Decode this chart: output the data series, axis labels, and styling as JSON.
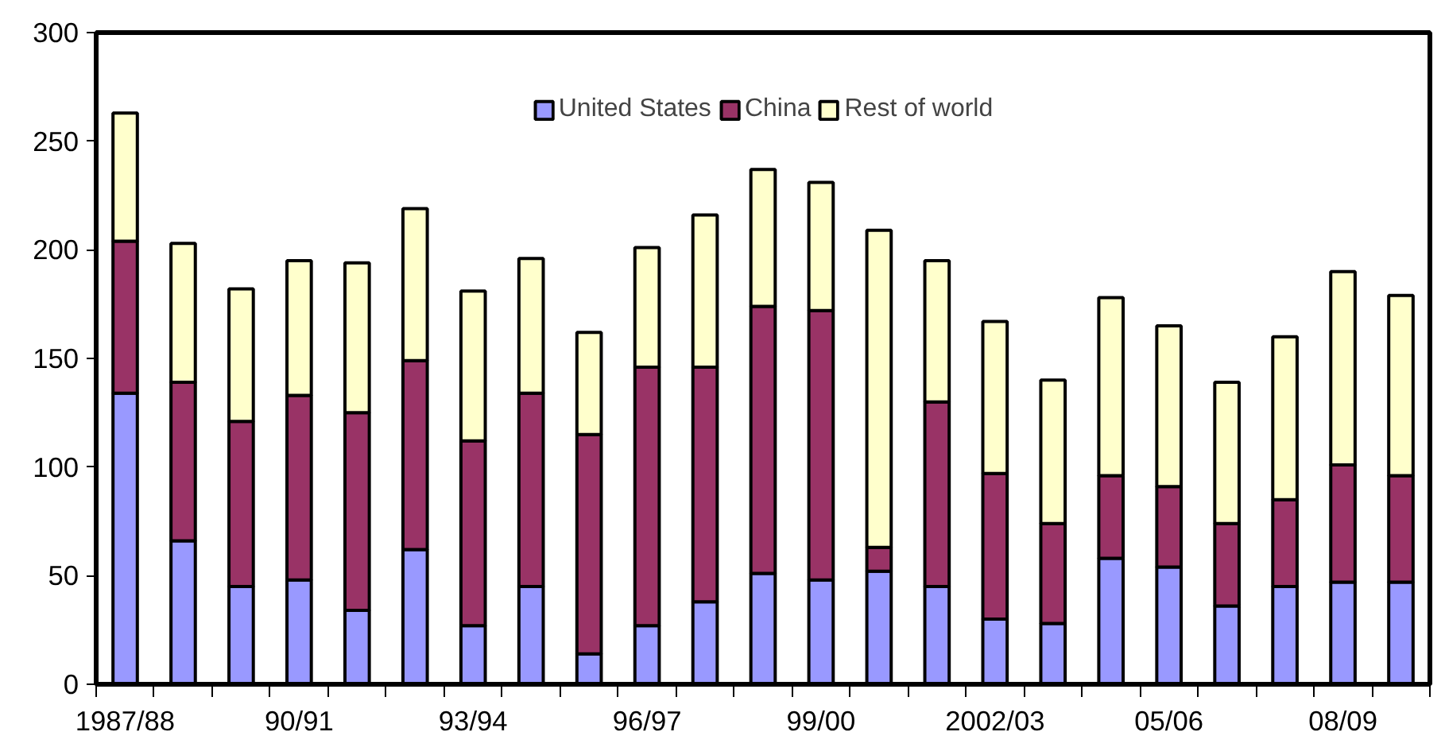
{
  "chart_data": {
    "type": "bar",
    "stacked": true,
    "categories": [
      "1987/88",
      null,
      null,
      "90/91",
      null,
      null,
      "93/94",
      null,
      null,
      "96/97",
      null,
      null,
      "99/00",
      null,
      null,
      "2002/03",
      null,
      null,
      "05/06",
      null,
      null,
      "08/09",
      null
    ],
    "series": [
      {
        "name": "United States",
        "color": "#9999ff",
        "values": [
          134,
          66,
          45,
          48,
          34,
          62,
          27,
          45,
          14,
          27,
          38,
          51,
          48,
          52,
          45,
          30,
          28,
          58,
          54,
          36,
          45,
          47,
          47
        ]
      },
      {
        "name": "China",
        "color": "#993366",
        "values": [
          70,
          73,
          76,
          85,
          91,
          87,
          85,
          89,
          101,
          119,
          108,
          123,
          124,
          11,
          85,
          67,
          46,
          38,
          37,
          38,
          40,
          54,
          49
        ]
      },
      {
        "name": "Rest of world",
        "color": "#ffffcc",
        "values": [
          59,
          64,
          61,
          62,
          69,
          70,
          69,
          62,
          47,
          55,
          70,
          63,
          59,
          146,
          65,
          70,
          66,
          82,
          74,
          65,
          75,
          89,
          83
        ]
      }
    ],
    "ylim": [
      0,
      300
    ],
    "yticks": [
      0,
      50,
      100,
      150,
      200,
      250,
      300
    ],
    "grid": false,
    "legend": "top"
  }
}
